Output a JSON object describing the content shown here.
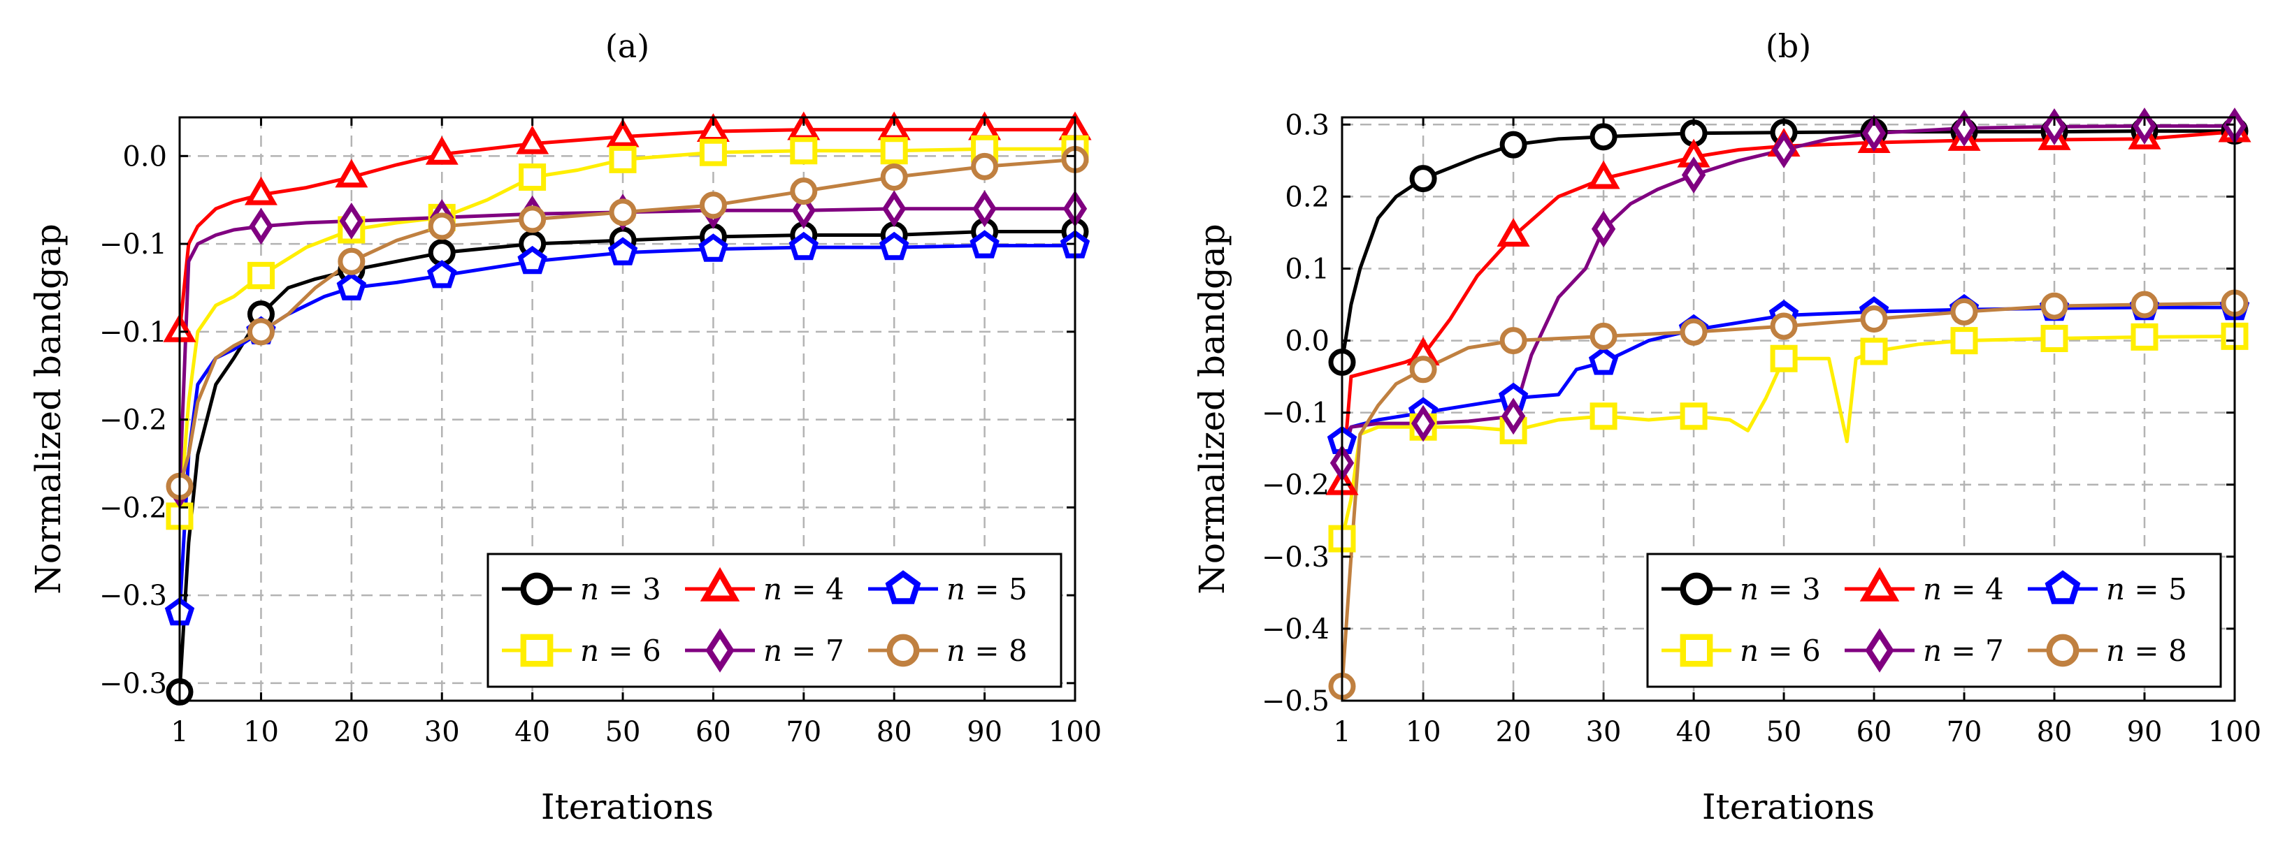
{
  "chart_data": [
    {
      "type": "line",
      "title": "(a)",
      "xlabel": "Iterations",
      "ylabel": "Normalized bandgap",
      "grid": true,
      "legend_position": "bottom-right",
      "x_ticks": [
        1,
        10,
        20,
        30,
        40,
        50,
        60,
        70,
        80,
        90,
        100
      ],
      "x_tick_labels": [
        "1",
        "10",
        "20",
        "30",
        "40",
        "50",
        "60",
        "70",
        "80",
        "90",
        "100"
      ],
      "xlim": [
        1,
        100
      ],
      "y_ticks": [
        0.0,
        -0.05,
        -0.1,
        -0.15,
        -0.2,
        -0.25,
        -0.3
      ],
      "y_tick_labels": [
        "0.0",
        "−0.1",
        "−0.1",
        "−0.2",
        "−0.2",
        "−0.3",
        "−0.3"
      ],
      "ylim": [
        -0.31,
        0.022
      ],
      "series": [
        {
          "name": "n = 3",
          "n": "3",
          "color": "#000000",
          "marker": "circle",
          "x": [
            1,
            2,
            3,
            5,
            7,
            10,
            13,
            16,
            20,
            25,
            30,
            40,
            50,
            60,
            70,
            80,
            90,
            100
          ],
          "y": [
            -0.305,
            -0.22,
            -0.17,
            -0.13,
            -0.115,
            -0.09,
            -0.075,
            -0.07,
            -0.065,
            -0.06,
            -0.055,
            -0.05,
            -0.048,
            -0.046,
            -0.045,
            -0.045,
            -0.043,
            -0.043
          ]
        },
        {
          "name": "n = 4",
          "n": "4",
          "color": "#ff0000",
          "marker": "triangle",
          "x": [
            1,
            2,
            3,
            5,
            7,
            10,
            15,
            20,
            25,
            30,
            40,
            50,
            60,
            70,
            80,
            90,
            100
          ],
          "y": [
            -0.1,
            -0.05,
            -0.04,
            -0.03,
            -0.026,
            -0.022,
            -0.018,
            -0.012,
            -0.005,
            0.001,
            0.007,
            0.011,
            0.014,
            0.015,
            0.015,
            0.015,
            0.015
          ]
        },
        {
          "name": "n = 5",
          "n": "5",
          "color": "#0000ff",
          "marker": "pentagon",
          "x": [
            1,
            2,
            3,
            5,
            7,
            10,
            13,
            17,
            20,
            25,
            30,
            40,
            50,
            60,
            70,
            80,
            90,
            100
          ],
          "y": [
            -0.26,
            -0.17,
            -0.13,
            -0.115,
            -0.11,
            -0.1,
            -0.09,
            -0.08,
            -0.075,
            -0.072,
            -0.068,
            -0.06,
            -0.055,
            -0.053,
            -0.052,
            -0.052,
            -0.051,
            -0.051
          ]
        },
        {
          "name": "n = 6",
          "n": "6",
          "color": "#ffee00",
          "marker": "square",
          "x": [
            1,
            2,
            3,
            5,
            7,
            10,
            15,
            20,
            25,
            30,
            35,
            40,
            45,
            50,
            60,
            70,
            80,
            90,
            100
          ],
          "y": [
            -0.205,
            -0.14,
            -0.1,
            -0.085,
            -0.08,
            -0.068,
            -0.052,
            -0.042,
            -0.038,
            -0.035,
            -0.025,
            -0.012,
            -0.008,
            -0.002,
            0.002,
            0.003,
            0.003,
            0.004,
            0.004
          ]
        },
        {
          "name": "n = 7",
          "n": "7",
          "color": "#800080",
          "marker": "diamond",
          "x": [
            1,
            2,
            3,
            5,
            7,
            10,
            15,
            20,
            25,
            30,
            40,
            50,
            60,
            70,
            80,
            90,
            100
          ],
          "y": [
            -0.19,
            -0.06,
            -0.05,
            -0.045,
            -0.042,
            -0.04,
            -0.038,
            -0.037,
            -0.036,
            -0.035,
            -0.033,
            -0.032,
            -0.031,
            -0.031,
            -0.03,
            -0.03,
            -0.03
          ]
        },
        {
          "name": "n = 8",
          "n": "8",
          "color": "#c08040",
          "marker": "circle",
          "x": [
            1,
            2,
            3,
            5,
            7,
            10,
            13,
            16,
            20,
            25,
            30,
            40,
            50,
            60,
            70,
            80,
            90,
            100
          ],
          "y": [
            -0.188,
            -0.17,
            -0.14,
            -0.115,
            -0.108,
            -0.1,
            -0.09,
            -0.075,
            -0.06,
            -0.048,
            -0.04,
            -0.036,
            -0.032,
            -0.028,
            -0.02,
            -0.012,
            -0.006,
            -0.002
          ]
        }
      ]
    },
    {
      "type": "line",
      "title": "(b)",
      "xlabel": "Iterations",
      "ylabel": "Normalized bandgap",
      "grid": true,
      "legend_position": "bottom-right",
      "x_ticks": [
        1,
        10,
        20,
        30,
        40,
        50,
        60,
        70,
        80,
        90,
        100
      ],
      "x_tick_labels": [
        "1",
        "10",
        "20",
        "30",
        "40",
        "50",
        "60",
        "70",
        "80",
        "90",
        "100"
      ],
      "xlim": [
        1,
        100
      ],
      "y_ticks": [
        0.3,
        0.2,
        0.1,
        0.0,
        -0.1,
        -0.2,
        -0.3,
        -0.4,
        -0.5
      ],
      "y_tick_labels": [
        "0.3",
        "0.2",
        "0.1",
        "0.0",
        "−0.1",
        "−0.2",
        "−0.3",
        "−0.4",
        "−0.5"
      ],
      "ylim": [
        -0.5,
        0.31
      ],
      "series": [
        {
          "name": "n = 3",
          "n": "3",
          "color": "#000000",
          "marker": "circle",
          "x": [
            1,
            2,
            3,
            5,
            7,
            10,
            13,
            16,
            20,
            25,
            30,
            40,
            50,
            60,
            70,
            80,
            90,
            100
          ],
          "y": [
            -0.03,
            0.05,
            0.1,
            0.17,
            0.2,
            0.225,
            0.24,
            0.255,
            0.272,
            0.28,
            0.283,
            0.288,
            0.289,
            0.29,
            0.29,
            0.29,
            0.291,
            0.291
          ]
        },
        {
          "name": "n = 4",
          "n": "4",
          "color": "#ff0000",
          "marker": "triangle",
          "x": [
            1,
            2,
            5,
            8,
            10,
            13,
            16,
            20,
            25,
            30,
            35,
            40,
            45,
            50,
            60,
            70,
            80,
            90,
            100
          ],
          "y": [
            -0.2,
            -0.05,
            -0.04,
            -0.03,
            -0.02,
            0.03,
            0.09,
            0.145,
            0.2,
            0.225,
            0.24,
            0.255,
            0.265,
            0.27,
            0.275,
            0.278,
            0.279,
            0.28,
            0.29
          ]
        },
        {
          "name": "n = 5",
          "n": "5",
          "color": "#0000ff",
          "marker": "pentagon",
          "x": [
            1,
            2,
            5,
            10,
            15,
            20,
            25,
            27,
            30,
            35,
            40,
            45,
            50,
            60,
            70,
            80,
            90,
            100
          ],
          "y": [
            -0.14,
            -0.12,
            -0.11,
            -0.1,
            -0.09,
            -0.08,
            -0.075,
            -0.04,
            -0.03,
            0.0,
            0.015,
            0.025,
            0.035,
            0.04,
            0.043,
            0.045,
            0.046,
            0.046
          ]
        },
        {
          "name": "n = 6",
          "n": "6",
          "color": "#ffee00",
          "marker": "square",
          "x": [
            1,
            2,
            3,
            5,
            10,
            15,
            20,
            25,
            30,
            35,
            40,
            44,
            46,
            48,
            50,
            55,
            57,
            58,
            60,
            65,
            70,
            80,
            90,
            100
          ],
          "y": [
            -0.275,
            -0.22,
            -0.13,
            -0.12,
            -0.12,
            -0.12,
            -0.125,
            -0.11,
            -0.105,
            -0.11,
            -0.105,
            -0.11,
            -0.125,
            -0.08,
            -0.025,
            -0.025,
            -0.14,
            -0.025,
            -0.015,
            -0.005,
            0.0,
            0.003,
            0.005,
            0.006
          ]
        },
        {
          "name": "n = 7",
          "n": "7",
          "color": "#800080",
          "marker": "diamond",
          "x": [
            1,
            2,
            5,
            10,
            15,
            20,
            22,
            25,
            28,
            30,
            33,
            36,
            40,
            45,
            50,
            55,
            60,
            70,
            80,
            90,
            100
          ],
          "y": [
            -0.17,
            -0.12,
            -0.115,
            -0.115,
            -0.112,
            -0.105,
            -0.02,
            0.06,
            0.1,
            0.155,
            0.19,
            0.21,
            0.23,
            0.25,
            0.265,
            0.28,
            0.288,
            0.295,
            0.297,
            0.298,
            0.298
          ]
        },
        {
          "name": "n = 8",
          "n": "8",
          "color": "#c08040",
          "marker": "circle",
          "x": [
            1,
            2,
            3,
            5,
            7,
            10,
            15,
            20,
            30,
            40,
            50,
            60,
            70,
            80,
            90,
            100
          ],
          "y": [
            -0.48,
            -0.3,
            -0.13,
            -0.09,
            -0.06,
            -0.04,
            -0.01,
            0.0,
            0.006,
            0.012,
            0.02,
            0.03,
            0.04,
            0.048,
            0.05,
            0.052
          ]
        }
      ]
    }
  ]
}
